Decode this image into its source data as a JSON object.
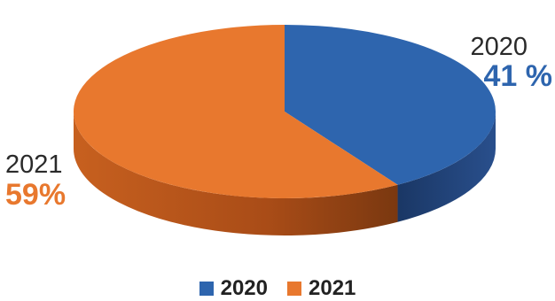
{
  "chart_data": {
    "type": "pie",
    "style": "3d",
    "slices": [
      {
        "label": "2020",
        "value": 41,
        "value_text": "41 %",
        "color": "#2E65AE",
        "side_color": "#1E3F73"
      },
      {
        "label": "2021",
        "value": 59,
        "value_text": "59%",
        "color": "#E8782E",
        "side_color": "#B2531C"
      }
    ],
    "legend": {
      "position": "bottom",
      "items": [
        {
          "label": "2020",
          "color": "#2E65AE"
        },
        {
          "label": "2021",
          "color": "#E8782E"
        }
      ]
    }
  }
}
